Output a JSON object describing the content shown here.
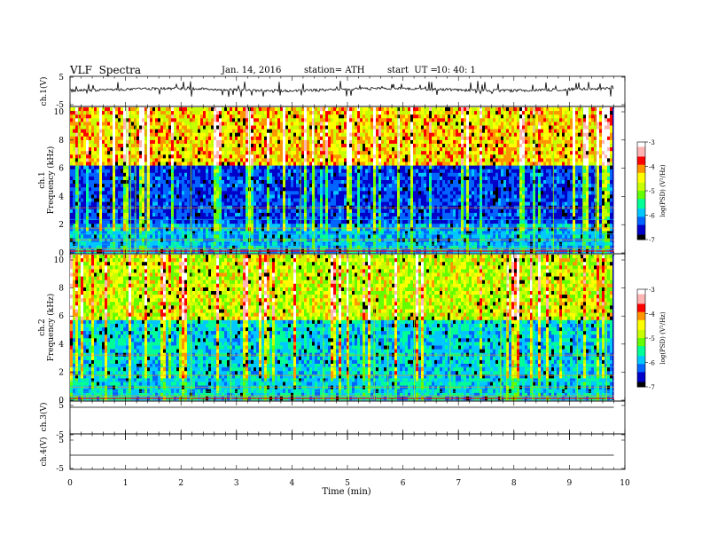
{
  "header": {
    "title": "VLF  Spectra",
    "date": "Jan. 14, 2016",
    "station": "station= ATH",
    "start_label": "start  UT =",
    "start_time": "10: 40: 1"
  },
  "chart_data": [
    {
      "type": "line",
      "panel": "ch1-waveform",
      "ylabel": "ch.1(V)",
      "ylim": [
        -5,
        5
      ],
      "yticks": [
        "5",
        "-5"
      ],
      "baseline": 0,
      "series_color": "#000000"
    },
    {
      "type": "heatmap",
      "panel": "ch1-spectrogram",
      "ylabel": "ch.1\nFrequency  (kHz)",
      "ylim": [
        0,
        10
      ],
      "yticks": [
        "0",
        "2",
        "4",
        "6",
        "8",
        "10"
      ],
      "colorbar": {
        "label": "log(PSD) (V²/Hz)",
        "range": [
          -7,
          -3
        ],
        "ticks": [
          "-3",
          "-4",
          "-5",
          "-6",
          "-7"
        ]
      }
    },
    {
      "type": "heatmap",
      "panel": "ch2-spectrogram",
      "ylabel": "ch.2\nFrequency  (kHz)",
      "ylim": [
        0,
        10
      ],
      "yticks": [
        "0",
        "2",
        "4",
        "6",
        "8",
        "10"
      ],
      "colorbar": {
        "label": "log(PSD) (V²/Hz)",
        "range": [
          -7,
          -3
        ],
        "ticks": [
          "-3",
          "-4",
          "-5",
          "-6",
          "-7"
        ]
      }
    },
    {
      "type": "line",
      "panel": "ch3-waveform",
      "ylabel": "ch.3(V)",
      "ylim": [
        -5,
        5
      ],
      "yticks": [
        "5",
        "-5"
      ],
      "baseline": 5
    },
    {
      "type": "line",
      "panel": "ch4-waveform",
      "ylabel": "ch.4(V)",
      "ylim": [
        -5,
        5
      ],
      "yticks": [
        "5",
        "-5"
      ],
      "baseline": -1
    }
  ],
  "x_axis": {
    "label": "Time  (min)",
    "range": [
      0,
      10
    ],
    "data_end": 9.8,
    "ticks": [
      "0",
      "1",
      "2",
      "3",
      "4",
      "5",
      "6",
      "7",
      "8",
      "9",
      "10"
    ]
  },
  "colormap": [
    "#000000",
    "#0000c8",
    "#0064ff",
    "#00c8ff",
    "#00ff96",
    "#64ff00",
    "#c8ff00",
    "#ffff00",
    "#ff9600",
    "#ff0000",
    "#ffb4b4",
    "#ffffff"
  ],
  "colorbar_label_text": "log(PSD) (V²/Hz)"
}
